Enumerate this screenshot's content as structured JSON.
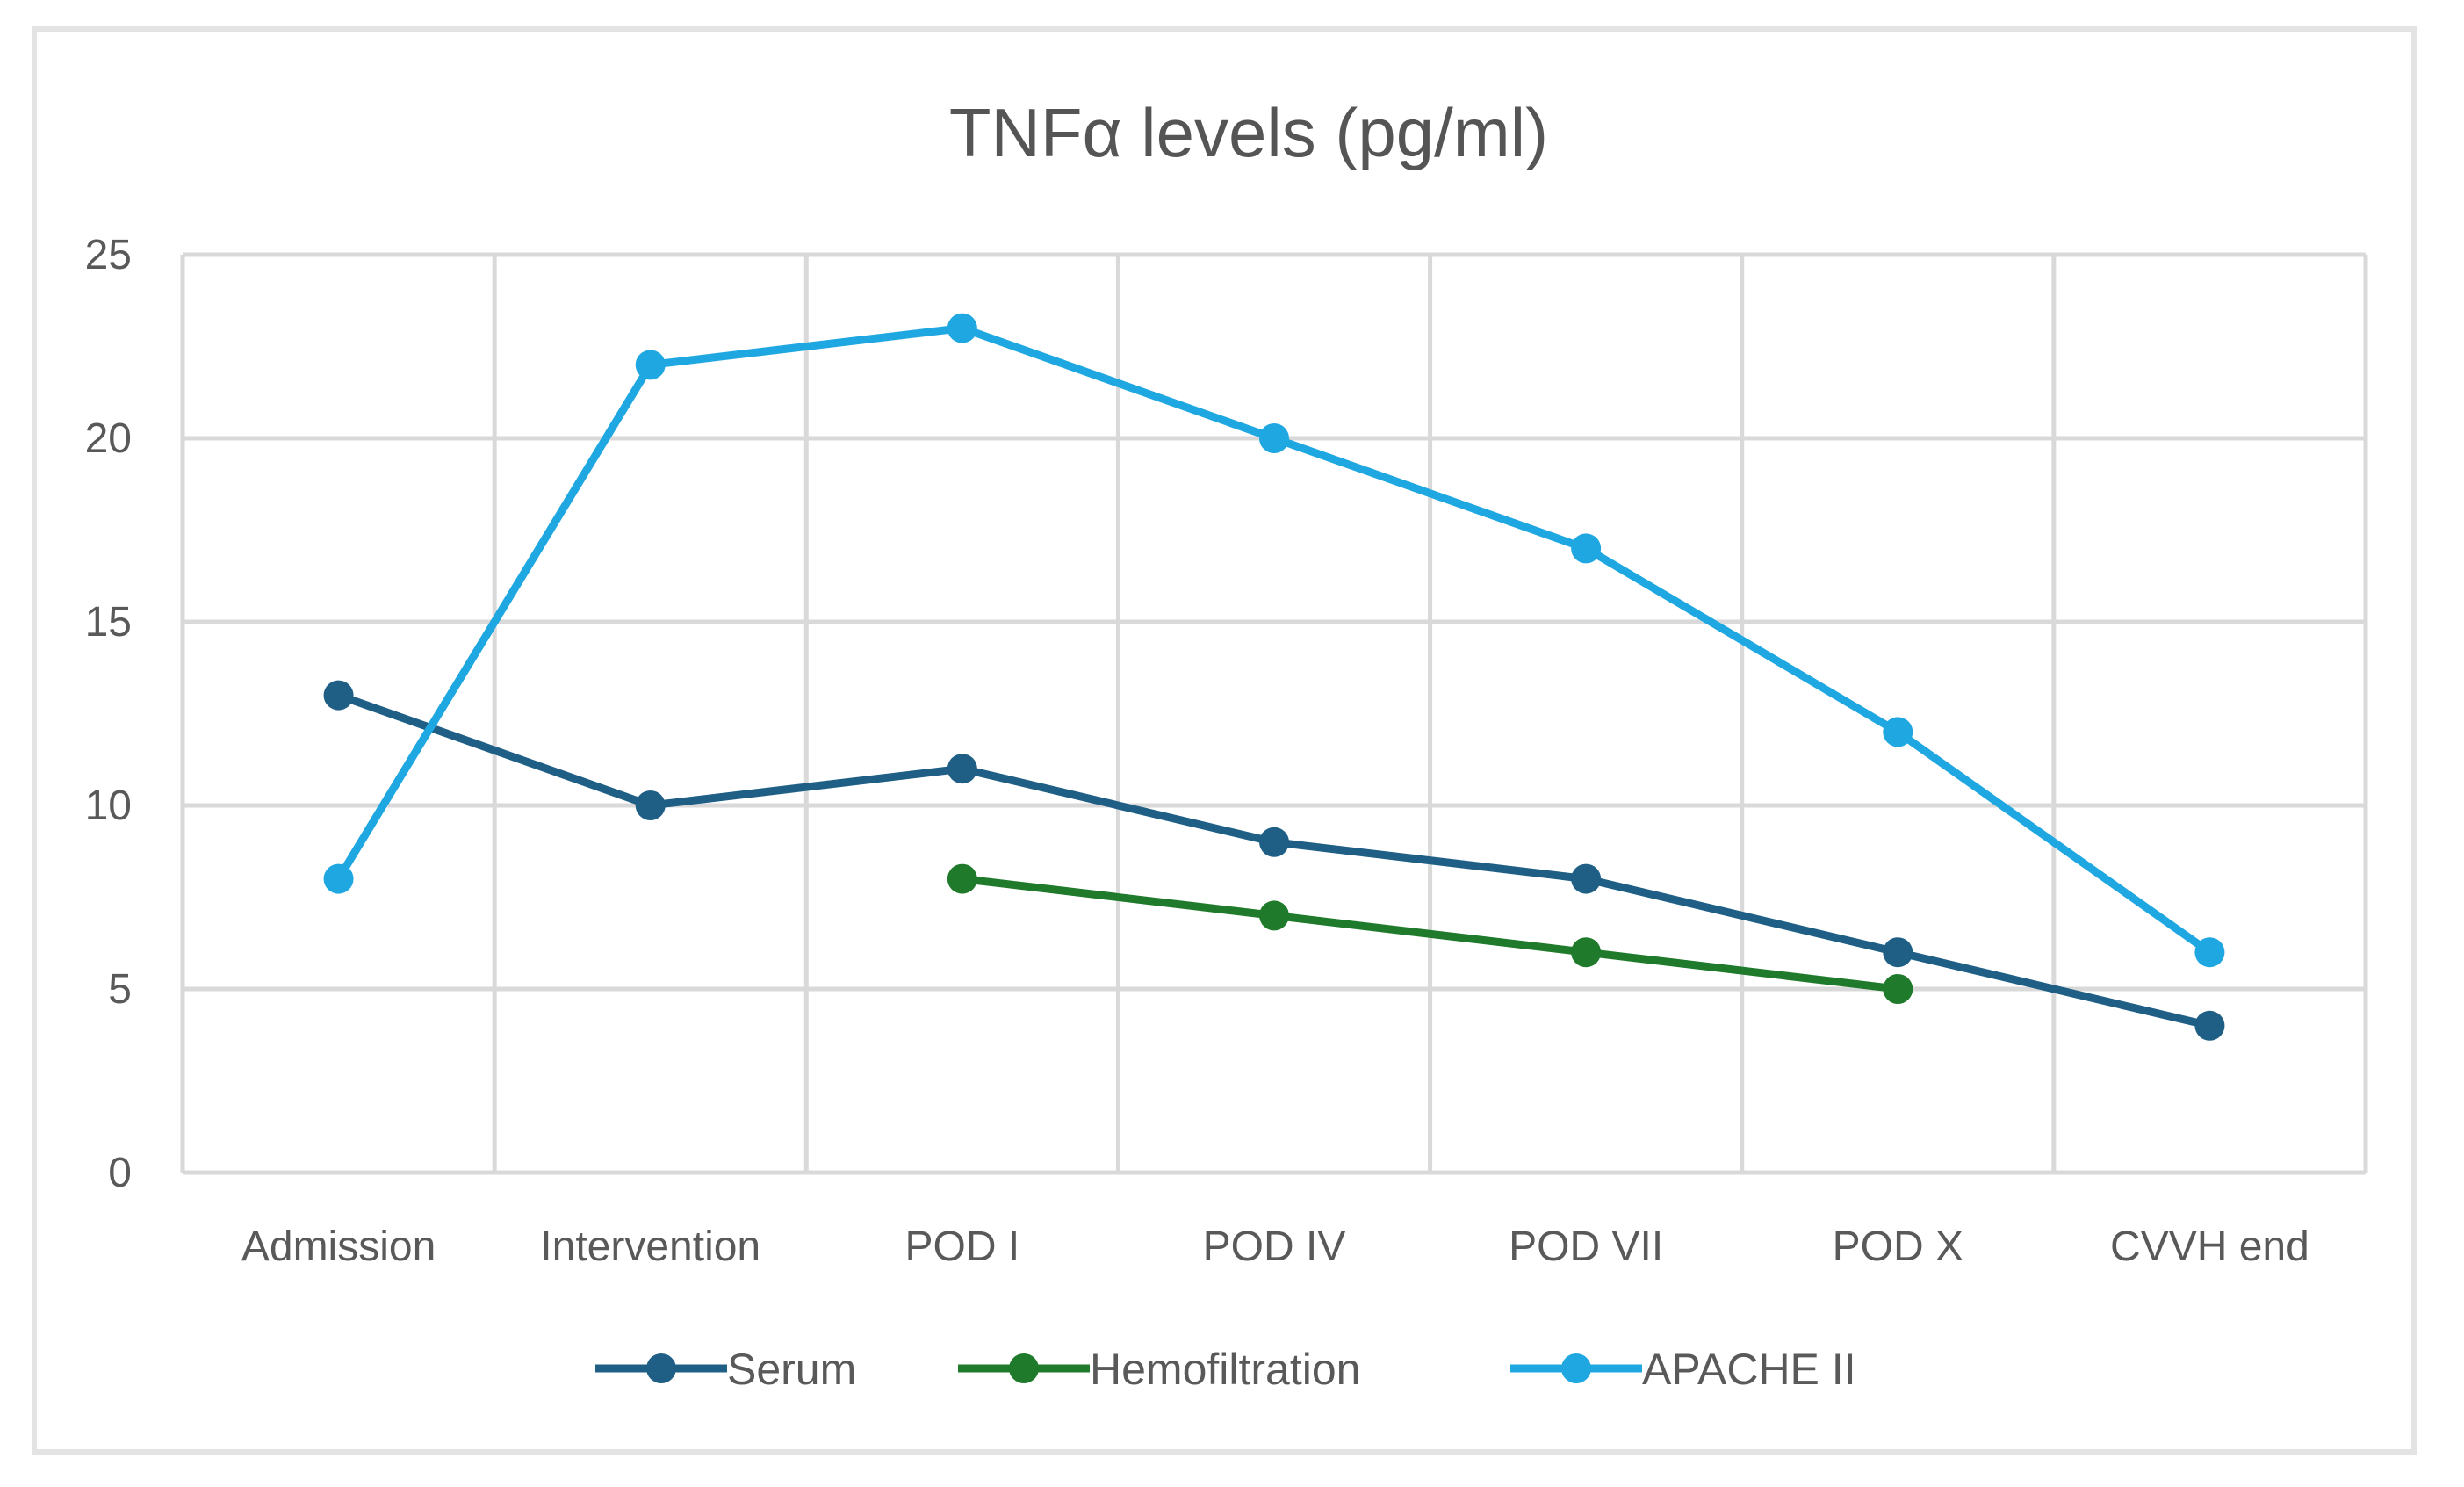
{
  "chart_data": {
    "type": "line",
    "title": "TNFα levels (pg/ml)",
    "xlabel": "",
    "ylabel": "",
    "categories": [
      "Admission",
      "Intervention",
      "POD I",
      "POD IV",
      "POD VII",
      "POD X",
      "CVVH end"
    ],
    "y_ticks": [
      "0",
      "5",
      "10",
      "15",
      "20",
      "25"
    ],
    "ylim": [
      0,
      25
    ],
    "grid": true,
    "legend_position": "bottom",
    "series": [
      {
        "name": "Serum",
        "color": "#1f5f86",
        "values": [
          13,
          10,
          11,
          9,
          8,
          6,
          4
        ]
      },
      {
        "name": "Hemofiltration",
        "color": "#1f7a2b",
        "values": [
          null,
          null,
          8,
          7,
          6,
          5,
          null
        ]
      },
      {
        "name": "APACHE II",
        "color": "#1ea7e1",
        "values": [
          8,
          22,
          23,
          20,
          17,
          12,
          6
        ]
      }
    ]
  }
}
